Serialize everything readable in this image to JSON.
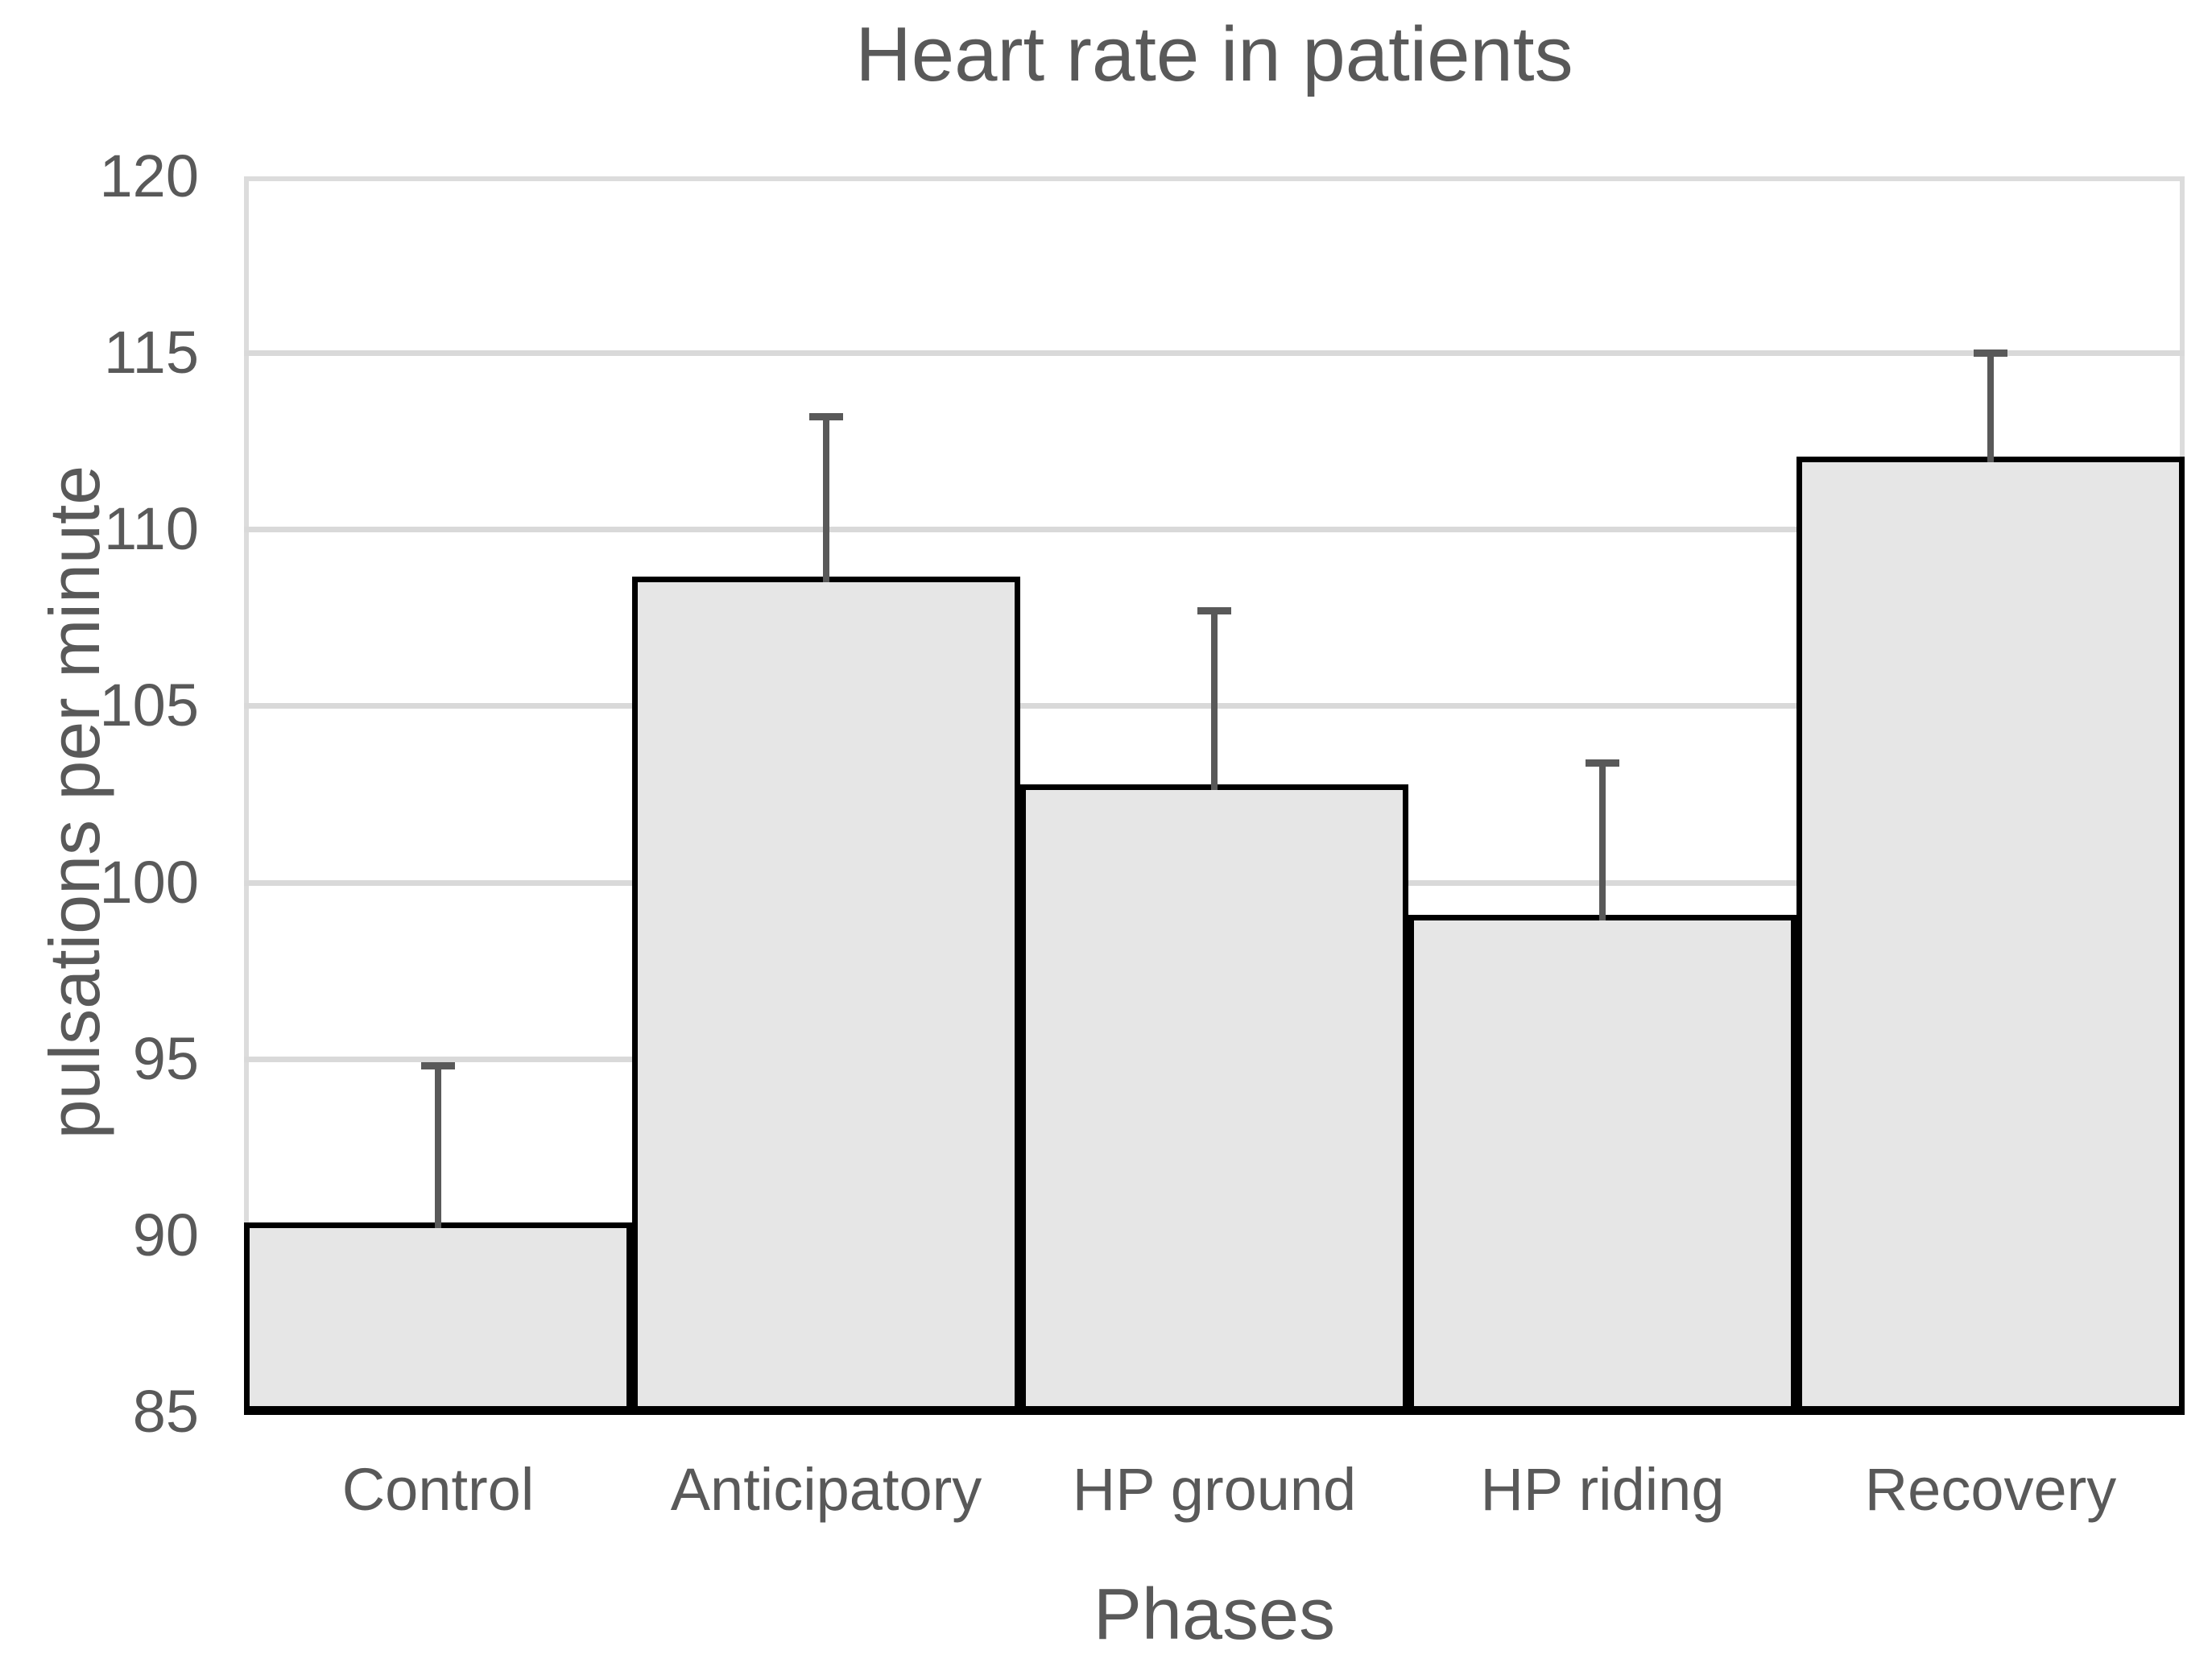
{
  "chart_data": {
    "type": "bar",
    "title": "Heart rate in patients",
    "xlabel": "Phases",
    "ylabel": "pulsations per minute",
    "categories": [
      "Control",
      "Anticipatory",
      "HP ground",
      "HP riding",
      "Recovery"
    ],
    "values": [
      90.3,
      108.6,
      102.7,
      99.0,
      112.0
    ],
    "error_top": [
      94.8,
      113.2,
      107.7,
      103.4,
      115.0
    ],
    "error_up": [
      4.5,
      4.6,
      5.0,
      4.4,
      3.0
    ],
    "ylim": [
      85,
      120
    ],
    "yticks": [
      120,
      115,
      110,
      105,
      100,
      95,
      90,
      85
    ],
    "grid": true,
    "bar_gap_percent": 0,
    "legend_position": "none"
  },
  "colors": {
    "bar_fill": "#e6e6e6",
    "bar_border": "#000000",
    "error_bar": "#595959",
    "gridline": "#d9d9d9",
    "plot_border": "#dcdcdc",
    "axis_line": "#000000",
    "text": "#595959",
    "background": "#ffffff"
  }
}
